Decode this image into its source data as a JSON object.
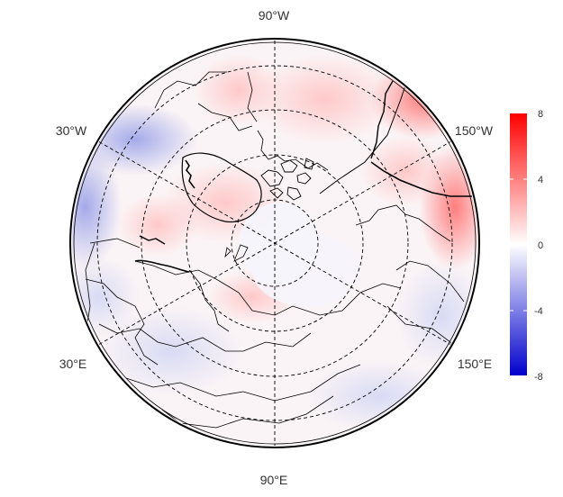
{
  "map": {
    "projection": "north-polar-stereographic",
    "longitude_labels": {
      "top": "90°W",
      "upper_left": "30°W",
      "upper_right": "150°W",
      "lower_left": "30°E",
      "lower_right": "150°E",
      "bottom": "90°E"
    },
    "graticule": {
      "style": "dashed",
      "color": "#000000"
    },
    "colorbar": {
      "ticks": [
        "8",
        "4",
        "0",
        "-4",
        "-8"
      ],
      "min": -8,
      "max": 8,
      "colors": {
        "high": "#ff0000",
        "mid": "#ffffff",
        "low": "#0000cc"
      }
    }
  }
}
